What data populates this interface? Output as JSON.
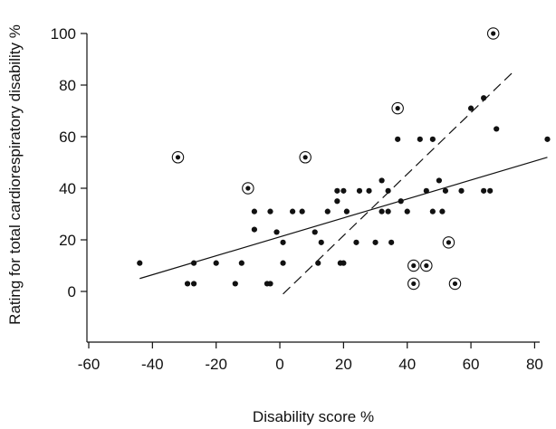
{
  "chart_data": {
    "type": "scatter",
    "xlabel": "Disability score  %",
    "ylabel": "Rating for total cardiorespiratory disability  %",
    "xlim": [
      -60,
      85
    ],
    "ylim": [
      -18,
      100
    ],
    "x_ticks": [
      "-60",
      "-40",
      "-20",
      "0",
      "20",
      "40",
      "60",
      "80"
    ],
    "x_tick_values": [
      -60,
      -40,
      -20,
      0,
      20,
      40,
      60,
      80
    ],
    "y_ticks": [
      "0",
      "20",
      "40",
      "60",
      "80",
      "100"
    ],
    "y_tick_values": [
      0,
      20,
      40,
      60,
      80,
      100
    ],
    "grid": false,
    "colors": {
      "marks": "#111111",
      "background": "#ffffff"
    },
    "series": [
      {
        "marker": "filled-dot",
        "points": [
          [
            -44,
            11
          ],
          [
            -29,
            3
          ],
          [
            -27,
            3
          ],
          [
            -27,
            11
          ],
          [
            -20,
            11
          ],
          [
            -14,
            3
          ],
          [
            -12,
            11
          ],
          [
            -8,
            24
          ],
          [
            -8,
            31
          ],
          [
            -4,
            3
          ],
          [
            -3,
            3
          ],
          [
            -3,
            31
          ],
          [
            -1,
            23
          ],
          [
            1,
            11
          ],
          [
            1,
            19
          ],
          [
            4,
            31
          ],
          [
            7,
            31
          ],
          [
            11,
            23
          ],
          [
            12,
            11
          ],
          [
            13,
            19
          ],
          [
            15,
            31
          ],
          [
            18,
            35
          ],
          [
            18,
            39
          ],
          [
            19,
            11
          ],
          [
            20,
            11
          ],
          [
            20,
            39
          ],
          [
            21,
            31
          ],
          [
            24,
            19
          ],
          [
            25,
            39
          ],
          [
            28,
            39
          ],
          [
            30,
            19
          ],
          [
            32,
            43
          ],
          [
            32,
            31
          ],
          [
            34,
            39
          ],
          [
            34,
            31
          ],
          [
            35,
            19
          ],
          [
            37,
            59
          ],
          [
            38,
            35
          ],
          [
            40,
            31
          ],
          [
            44,
            59
          ],
          [
            46,
            39
          ],
          [
            48,
            59
          ],
          [
            48,
            31
          ],
          [
            50,
            43
          ],
          [
            51,
            31
          ],
          [
            52,
            39
          ],
          [
            57,
            39
          ],
          [
            60,
            71
          ],
          [
            64,
            75
          ],
          [
            64,
            39
          ],
          [
            66,
            39
          ],
          [
            68,
            63
          ],
          [
            84,
            59
          ]
        ]
      },
      {
        "marker": "circled-dot",
        "points": [
          [
            -32,
            52
          ],
          [
            -10,
            40
          ],
          [
            8,
            52
          ],
          [
            37,
            71
          ],
          [
            42,
            3
          ],
          [
            42,
            10
          ],
          [
            46,
            10
          ],
          [
            53,
            19
          ],
          [
            55,
            3
          ],
          [
            67,
            100
          ]
        ]
      }
    ],
    "lines": [
      {
        "style": "solid",
        "x": [
          -44,
          84
        ],
        "y": [
          5,
          52
        ]
      },
      {
        "style": "dashed",
        "x": [
          1,
          74
        ],
        "y": [
          -1,
          86
        ]
      }
    ]
  }
}
